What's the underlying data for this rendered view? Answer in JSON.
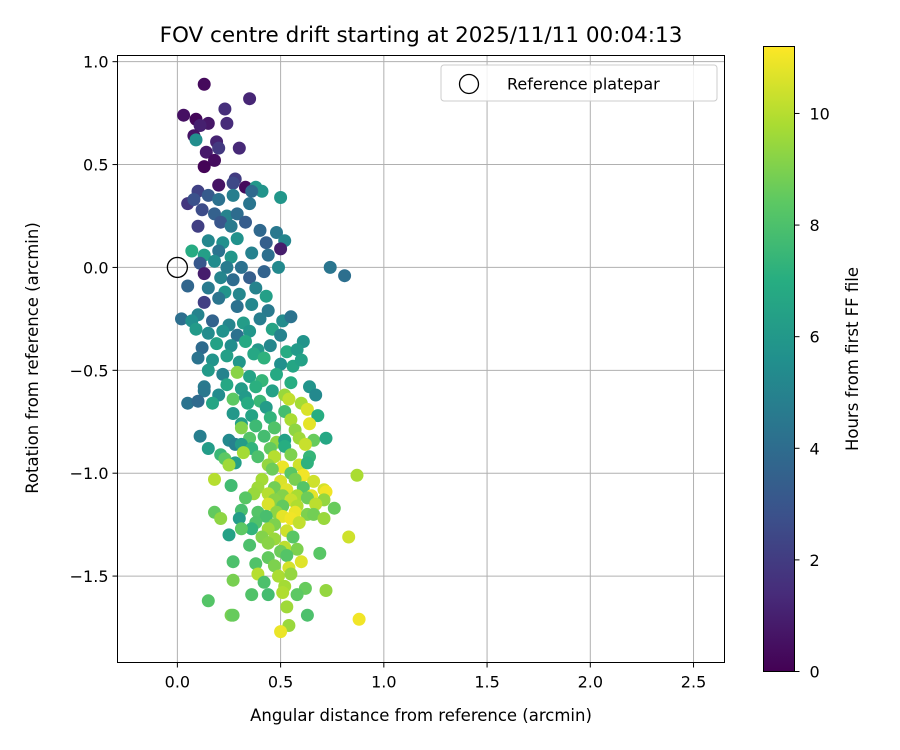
{
  "chart_data": {
    "type": "scatter",
    "title": "FOV centre drift starting at 2025/11/11 00:04:13",
    "xlabel": "Angular distance from reference (arcmin)",
    "ylabel": "Rotation from reference (arcmin)",
    "xlim": [
      -0.29,
      2.65
    ],
    "ylim": [
      -1.92,
      1.03
    ],
    "xticks": [
      0.0,
      0.5,
      1.0,
      1.5,
      2.0,
      2.5
    ],
    "xtick_labels": [
      "0.0",
      "0.5",
      "1.0",
      "1.5",
      "2.0",
      "2.5"
    ],
    "yticks": [
      1.0,
      0.5,
      0.0,
      -0.5,
      -1.0,
      -1.5
    ],
    "ytick_labels": [
      "1.0",
      "0.5",
      "0.0",
      "−0.5",
      "−1.0",
      "−1.5"
    ],
    "grid": true,
    "colormap": "viridis",
    "colorbar": {
      "label": "Hours from first FF file",
      "range": [
        0,
        11.2
      ],
      "ticks": [
        0,
        2,
        4,
        6,
        8,
        10
      ],
      "tick_labels": [
        "0",
        "2",
        "4",
        "6",
        "8",
        "10"
      ]
    },
    "legend": {
      "position": "upper-right",
      "entries": [
        {
          "label": "Reference platepar",
          "marker": "open-circle"
        }
      ]
    },
    "reference_point": {
      "x": 0.0,
      "y": 0.0
    },
    "points": [
      [
        0.13,
        0.89,
        0.3
      ],
      [
        0.35,
        0.82,
        1.2
      ],
      [
        0.03,
        0.74,
        0.5
      ],
      [
        0.09,
        0.72,
        0.2
      ],
      [
        0.15,
        0.7,
        0.7
      ],
      [
        0.23,
        0.77,
        1.5
      ],
      [
        0.11,
        0.69,
        1.0
      ],
      [
        0.24,
        0.7,
        1.4
      ],
      [
        0.08,
        0.64,
        0.6
      ],
      [
        0.09,
        0.62,
        5.5
      ],
      [
        0.19,
        0.61,
        1.1
      ],
      [
        0.2,
        0.58,
        1.9
      ],
      [
        0.3,
        0.58,
        1.3
      ],
      [
        0.14,
        0.56,
        0.8
      ],
      [
        0.18,
        0.52,
        0.4
      ],
      [
        0.13,
        0.49,
        0.1
      ],
      [
        0.28,
        0.43,
        2.0
      ],
      [
        0.27,
        0.41,
        2.5
      ],
      [
        0.2,
        0.4,
        0.6
      ],
      [
        0.33,
        0.39,
        0.3
      ],
      [
        0.1,
        0.37,
        2.2
      ],
      [
        0.38,
        0.39,
        6.0
      ],
      [
        0.41,
        0.37,
        5.8
      ],
      [
        0.05,
        0.31,
        1.8
      ],
      [
        0.15,
        0.35,
        3.2
      ],
      [
        0.08,
        0.33,
        2.8
      ],
      [
        0.2,
        0.33,
        4.2
      ],
      [
        0.27,
        0.35,
        4.8
      ],
      [
        0.36,
        0.37,
        3.9
      ],
      [
        0.5,
        0.34,
        5.9
      ],
      [
        0.12,
        0.28,
        2.6
      ],
      [
        0.18,
        0.26,
        3.5
      ],
      [
        0.24,
        0.25,
        5.0
      ],
      [
        0.29,
        0.26,
        4.0
      ],
      [
        0.35,
        0.31,
        4.4
      ],
      [
        0.1,
        0.2,
        2.1
      ],
      [
        0.21,
        0.22,
        3.0
      ],
      [
        0.26,
        0.2,
        4.6
      ],
      [
        0.33,
        0.22,
        3.3
      ],
      [
        0.4,
        0.18,
        3.8
      ],
      [
        0.48,
        0.17,
        4.5
      ],
      [
        0.15,
        0.13,
        5.2
      ],
      [
        0.22,
        0.12,
        5.6
      ],
      [
        0.29,
        0.14,
        5.7
      ],
      [
        0.43,
        0.12,
        3.4
      ],
      [
        0.52,
        0.13,
        5.1
      ],
      [
        0.5,
        0.09,
        0.9
      ],
      [
        0.07,
        0.08,
        6.9
      ],
      [
        0.13,
        0.06,
        6.3
      ],
      [
        0.2,
        0.08,
        4.3
      ],
      [
        0.26,
        0.05,
        5.9
      ],
      [
        0.36,
        0.07,
        4.9
      ],
      [
        0.44,
        0.06,
        4.1
      ],
      [
        0.11,
        0.02,
        3.1
      ],
      [
        0.18,
        0.03,
        5.4
      ],
      [
        0.24,
        0.0,
        4.7
      ],
      [
        0.31,
        0.0,
        4.2
      ],
      [
        0.42,
        -0.02,
        3.6
      ],
      [
        0.49,
        0.0,
        5.3
      ],
      [
        0.74,
        0.0,
        4.4
      ],
      [
        0.81,
        -0.04,
        4.1
      ],
      [
        0.13,
        -0.03,
        0.9
      ],
      [
        0.21,
        -0.05,
        5.1
      ],
      [
        0.27,
        -0.06,
        4.0
      ],
      [
        0.35,
        -0.05,
        3.4
      ],
      [
        0.05,
        -0.09,
        3.7
      ],
      [
        0.15,
        -0.1,
        4.6
      ],
      [
        0.23,
        -0.12,
        5.8
      ],
      [
        0.3,
        -0.13,
        5.2
      ],
      [
        0.38,
        -0.1,
        5.0
      ],
      [
        0.43,
        -0.14,
        6.3
      ],
      [
        0.2,
        -0.15,
        4.4
      ],
      [
        0.13,
        -0.17,
        2.1
      ],
      [
        0.29,
        -0.19,
        4.2
      ],
      [
        0.36,
        -0.18,
        5.2
      ],
      [
        0.44,
        -0.21,
        4.6
      ],
      [
        0.1,
        -0.23,
        5.0
      ],
      [
        0.02,
        -0.25,
        4.1
      ],
      [
        0.07,
        -0.26,
        5.6
      ],
      [
        0.17,
        -0.26,
        3.6
      ],
      [
        0.25,
        -0.28,
        5.1
      ],
      [
        0.32,
        -0.27,
        6.2
      ],
      [
        0.4,
        -0.25,
        4.8
      ],
      [
        0.51,
        -0.26,
        5.4
      ],
      [
        0.55,
        -0.24,
        4.3
      ],
      [
        0.09,
        -0.3,
        6.1
      ],
      [
        0.15,
        -0.32,
        5.4
      ],
      [
        0.22,
        -0.31,
        5.7
      ],
      [
        0.29,
        -0.33,
        4.2
      ],
      [
        0.35,
        -0.31,
        5.9
      ],
      [
        0.46,
        -0.3,
        6.5
      ],
      [
        0.5,
        -0.33,
        5.0
      ],
      [
        0.61,
        -0.36,
        5.8
      ],
      [
        0.12,
        -0.39,
        3.9
      ],
      [
        0.19,
        -0.37,
        6.4
      ],
      [
        0.26,
        -0.38,
        5.5
      ],
      [
        0.33,
        -0.36,
        6.8
      ],
      [
        0.39,
        -0.4,
        6.0
      ],
      [
        0.45,
        -0.38,
        5.2
      ],
      [
        0.53,
        -0.41,
        6.9
      ],
      [
        0.58,
        -0.4,
        6.1
      ],
      [
        0.1,
        -0.44,
        4.3
      ],
      [
        0.17,
        -0.45,
        5.8
      ],
      [
        0.24,
        -0.43,
        6.3
      ],
      [
        0.3,
        -0.46,
        5.9
      ],
      [
        0.37,
        -0.42,
        6.7
      ],
      [
        0.42,
        -0.44,
        7.2
      ],
      [
        0.5,
        -0.47,
        5.6
      ],
      [
        0.56,
        -0.48,
        6.6
      ],
      [
        0.6,
        -0.45,
        6.4
      ],
      [
        0.15,
        -0.5,
        6.1
      ],
      [
        0.22,
        -0.52,
        5.0
      ],
      [
        0.29,
        -0.51,
        9.2
      ],
      [
        0.35,
        -0.53,
        6.5
      ],
      [
        0.41,
        -0.55,
        7.4
      ],
      [
        0.48,
        -0.52,
        6.8
      ],
      [
        0.55,
        -0.56,
        7.0
      ],
      [
        0.13,
        -0.58,
        4.6
      ],
      [
        0.24,
        -0.57,
        6.7
      ],
      [
        0.31,
        -0.59,
        6.2
      ],
      [
        0.38,
        -0.58,
        7.1
      ],
      [
        0.46,
        -0.6,
        6.4
      ],
      [
        0.52,
        -0.62,
        9.5
      ],
      [
        0.64,
        -0.58,
        5.8
      ],
      [
        0.13,
        -0.6,
        4.5
      ],
      [
        0.2,
        -0.62,
        5.4
      ],
      [
        0.27,
        -0.64,
        8.4
      ],
      [
        0.33,
        -0.63,
        6.1
      ],
      [
        0.4,
        -0.65,
        7.5
      ],
      [
        0.54,
        -0.64,
        10.2
      ],
      [
        0.6,
        -0.66,
        9.7
      ],
      [
        0.67,
        -0.62,
        5.3
      ],
      [
        0.05,
        -0.66,
        4.3
      ],
      [
        0.1,
        -0.65,
        3.9
      ],
      [
        0.17,
        -0.66,
        6.6
      ],
      [
        0.34,
        -0.66,
        6.9
      ],
      [
        0.43,
        -0.68,
        6.2
      ],
      [
        0.52,
        -0.7,
        7.8
      ],
      [
        0.63,
        -0.69,
        10.6
      ],
      [
        0.27,
        -0.71,
        6.0
      ],
      [
        0.36,
        -0.72,
        6.5
      ],
      [
        0.45,
        -0.73,
        7.3
      ],
      [
        0.55,
        -0.74,
        9.8
      ],
      [
        0.68,
        -0.72,
        7.0
      ],
      [
        0.31,
        -0.76,
        6.3
      ],
      [
        0.38,
        -0.77,
        7.6
      ],
      [
        0.47,
        -0.78,
        8.1
      ],
      [
        0.57,
        -0.79,
        9.3
      ],
      [
        0.64,
        -0.76,
        10.8
      ],
      [
        0.31,
        -0.78,
        9.1
      ],
      [
        0.11,
        -0.82,
        4.8
      ],
      [
        0.25,
        -0.84,
        5.3
      ],
      [
        0.35,
        -0.83,
        8.2
      ],
      [
        0.42,
        -0.82,
        7.8
      ],
      [
        0.48,
        -0.85,
        9.3
      ],
      [
        0.52,
        -0.84,
        6.4
      ],
      [
        0.59,
        -0.83,
        9.6
      ],
      [
        0.66,
        -0.84,
        8.6
      ],
      [
        0.72,
        -0.83,
        6.7
      ],
      [
        0.28,
        -0.86,
        4.9
      ],
      [
        0.31,
        -0.86,
        6.2
      ],
      [
        0.36,
        -0.88,
        7.3
      ],
      [
        0.45,
        -0.88,
        8.5
      ],
      [
        0.52,
        -0.87,
        7.0
      ],
      [
        0.62,
        -0.86,
        10.3
      ],
      [
        0.15,
        -0.88,
        6.2
      ],
      [
        0.21,
        -0.91,
        7.5
      ],
      [
        0.32,
        -0.9,
        9.7
      ],
      [
        0.39,
        -0.92,
        8.0
      ],
      [
        0.47,
        -0.92,
        10.0
      ],
      [
        0.55,
        -0.91,
        9.0
      ],
      [
        0.64,
        -0.92,
        7.4
      ],
      [
        0.23,
        -0.93,
        8.4
      ],
      [
        0.28,
        -0.95,
        6.3
      ],
      [
        0.44,
        -0.96,
        9.4
      ],
      [
        0.51,
        -0.97,
        10.9
      ],
      [
        0.59,
        -0.96,
        10.4
      ],
      [
        0.63,
        -0.95,
        7.2
      ],
      [
        0.25,
        -0.96,
        9.6
      ],
      [
        0.46,
        -0.98,
        8.7
      ],
      [
        0.55,
        -1.0,
        8.3
      ],
      [
        0.61,
        -1.01,
        11.0
      ],
      [
        0.87,
        -1.01,
        9.8
      ],
      [
        0.18,
        -1.03,
        10.0
      ],
      [
        0.41,
        -1.03,
        9.7
      ],
      [
        0.5,
        -1.04,
        10.6
      ],
      [
        0.57,
        -1.03,
        8.9
      ],
      [
        0.66,
        -1.04,
        10.4
      ],
      [
        0.26,
        -1.06,
        7.7
      ],
      [
        0.39,
        -1.07,
        9.6
      ],
      [
        0.47,
        -1.07,
        8.8
      ],
      [
        0.53,
        -1.08,
        10.7
      ],
      [
        0.61,
        -1.07,
        8.2
      ],
      [
        0.71,
        -1.08,
        10.5
      ],
      [
        0.37,
        -1.1,
        9.5
      ],
      [
        0.44,
        -1.1,
        10.0
      ],
      [
        0.51,
        -1.11,
        9.1
      ],
      [
        0.58,
        -1.11,
        9.8
      ],
      [
        0.65,
        -1.11,
        10.8
      ],
      [
        0.72,
        -1.09,
        11.0
      ],
      [
        0.33,
        -1.12,
        8.3
      ],
      [
        0.47,
        -1.13,
        9.2
      ],
      [
        0.55,
        -1.13,
        10.3
      ],
      [
        0.63,
        -1.12,
        8.7
      ],
      [
        0.71,
        -1.13,
        9.4
      ],
      [
        0.44,
        -1.15,
        10.6
      ],
      [
        0.51,
        -1.16,
        8.5
      ],
      [
        0.58,
        -1.16,
        9.9
      ],
      [
        0.67,
        -1.15,
        10.1
      ],
      [
        0.31,
        -1.18,
        7.9
      ],
      [
        0.39,
        -1.19,
        8.2
      ],
      [
        0.48,
        -1.19,
        9.3
      ],
      [
        0.57,
        -1.19,
        10.9
      ],
      [
        0.63,
        -1.2,
        9.0
      ],
      [
        0.76,
        -1.17,
        8.6
      ],
      [
        0.18,
        -1.19,
        8.5
      ],
      [
        0.21,
        -1.22,
        9.3
      ],
      [
        0.3,
        -1.22,
        6.2
      ],
      [
        0.43,
        -1.21,
        7.9
      ],
      [
        0.51,
        -1.21,
        10.8
      ],
      [
        0.55,
        -1.22,
        11.0
      ],
      [
        0.66,
        -1.2,
        8.8
      ],
      [
        0.71,
        -1.22,
        9.5
      ],
      [
        0.38,
        -1.24,
        8.1
      ],
      [
        0.47,
        -1.25,
        9.0
      ],
      [
        0.59,
        -1.24,
        10.2
      ],
      [
        0.36,
        -1.27,
        7.3
      ],
      [
        0.44,
        -1.27,
        9.6
      ],
      [
        0.53,
        -1.28,
        10.4
      ],
      [
        0.25,
        -1.3,
        6.4
      ],
      [
        0.31,
        -1.27,
        8.4
      ],
      [
        0.41,
        -1.31,
        9.1
      ],
      [
        0.47,
        -1.32,
        9.5
      ],
      [
        0.56,
        -1.31,
        8.3
      ],
      [
        0.83,
        -1.31,
        10.4
      ],
      [
        0.35,
        -1.35,
        8.0
      ],
      [
        0.44,
        -1.34,
        9.2
      ],
      [
        0.52,
        -1.36,
        10.1
      ],
      [
        0.5,
        -1.38,
        8.7
      ],
      [
        0.58,
        -1.37,
        9.0
      ],
      [
        0.27,
        -1.43,
        8.0
      ],
      [
        0.44,
        -1.41,
        8.5
      ],
      [
        0.53,
        -1.4,
        8.2
      ],
      [
        0.69,
        -1.39,
        8.3
      ],
      [
        0.38,
        -1.44,
        8.1
      ],
      [
        0.47,
        -1.45,
        9.0
      ],
      [
        0.54,
        -1.46,
        10.5
      ],
      [
        0.6,
        -1.43,
        10.7
      ],
      [
        0.39,
        -1.49,
        10.0
      ],
      [
        0.49,
        -1.5,
        9.8
      ],
      [
        0.55,
        -1.49,
        9.4
      ],
      [
        0.27,
        -1.52,
        8.9
      ],
      [
        0.42,
        -1.53,
        8.0
      ],
      [
        0.52,
        -1.55,
        9.7
      ],
      [
        0.62,
        -1.56,
        8.6
      ],
      [
        0.72,
        -1.57,
        9.4
      ],
      [
        0.36,
        -1.59,
        8.1
      ],
      [
        0.44,
        -1.59,
        7.8
      ],
      [
        0.51,
        -1.58,
        9.9
      ],
      [
        0.58,
        -1.59,
        8.4
      ],
      [
        0.15,
        -1.62,
        8.2
      ],
      [
        0.53,
        -1.65,
        9.6
      ],
      [
        0.26,
        -1.69,
        8.9
      ],
      [
        0.27,
        -1.69,
        8.6
      ],
      [
        0.63,
        -1.69,
        8.0
      ],
      [
        0.88,
        -1.71,
        11.0
      ],
      [
        0.54,
        -1.74,
        9.5
      ],
      [
        0.5,
        -1.77,
        10.9
      ]
    ]
  }
}
